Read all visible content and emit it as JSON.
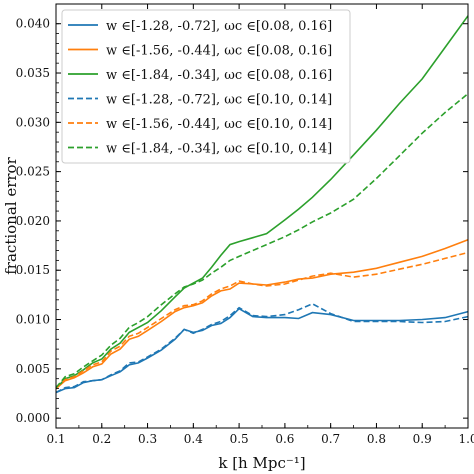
{
  "chart_data": {
    "type": "line",
    "title": "",
    "xlabel": "k [h Mpc⁻¹]",
    "ylabel": "fractional error",
    "xlim": [
      0.1,
      1.0
    ],
    "ylim": [
      -0.001,
      0.042
    ],
    "x_ticks": [
      "0.1",
      "0.2",
      "0.3",
      "0.4",
      "0.5",
      "0.6",
      "0.7",
      "0.8",
      "0.9",
      "1.0"
    ],
    "y_ticks": [
      "0.000",
      "0.005",
      "0.010",
      "0.015",
      "0.020",
      "0.025",
      "0.030",
      "0.035",
      "0.040"
    ],
    "grid": false,
    "legend_position": "top-left",
    "series": [
      {
        "name": "w ∈[-1.28, -0.72], ωc ∈[0.08, 0.16]",
        "color": "#1f77b4",
        "style": "solid",
        "x": [
          0.1,
          0.12,
          0.14,
          0.16,
          0.18,
          0.2,
          0.22,
          0.24,
          0.26,
          0.28,
          0.3,
          0.33,
          0.36,
          0.38,
          0.4,
          0.42,
          0.44,
          0.46,
          0.48,
          0.5,
          0.53,
          0.56,
          0.6,
          0.63,
          0.66,
          0.7,
          0.75,
          0.8,
          0.85,
          0.9,
          0.95,
          1.0
        ],
        "values": [
          0.0026,
          0.003,
          0.0031,
          0.0036,
          0.0038,
          0.0039,
          0.0043,
          0.0047,
          0.0054,
          0.0056,
          0.0061,
          0.0069,
          0.008,
          0.009,
          0.0087,
          0.0089,
          0.0094,
          0.0096,
          0.0102,
          0.0111,
          0.0103,
          0.0102,
          0.0102,
          0.0101,
          0.0107,
          0.0105,
          0.0099,
          0.0099,
          0.0099,
          0.01,
          0.0102,
          0.0108
        ]
      },
      {
        "name": "w ∈[-1.56, -0.44], ωc ∈[0.08, 0.16]",
        "color": "#ff7f0e",
        "style": "solid",
        "x": [
          0.1,
          0.12,
          0.14,
          0.16,
          0.18,
          0.2,
          0.22,
          0.24,
          0.26,
          0.28,
          0.3,
          0.33,
          0.36,
          0.38,
          0.4,
          0.42,
          0.44,
          0.46,
          0.48,
          0.5,
          0.53,
          0.56,
          0.6,
          0.63,
          0.66,
          0.7,
          0.75,
          0.8,
          0.85,
          0.9,
          0.95,
          1.0
        ],
        "values": [
          0.003,
          0.0038,
          0.0041,
          0.0046,
          0.0052,
          0.0055,
          0.0065,
          0.007,
          0.008,
          0.0083,
          0.0089,
          0.0098,
          0.0108,
          0.0112,
          0.0114,
          0.0117,
          0.0124,
          0.0129,
          0.0131,
          0.0137,
          0.0136,
          0.0135,
          0.0138,
          0.0141,
          0.0142,
          0.0146,
          0.0148,
          0.0152,
          0.0158,
          0.0164,
          0.0172,
          0.0181
        ]
      },
      {
        "name": "w ∈[-1.84, -0.34], ωc ∈[0.08, 0.16]",
        "color": "#2ca02c",
        "style": "solid",
        "x": [
          0.1,
          0.12,
          0.14,
          0.16,
          0.18,
          0.2,
          0.22,
          0.24,
          0.26,
          0.28,
          0.3,
          0.33,
          0.36,
          0.38,
          0.4,
          0.42,
          0.44,
          0.46,
          0.48,
          0.5,
          0.53,
          0.56,
          0.6,
          0.63,
          0.66,
          0.7,
          0.75,
          0.8,
          0.85,
          0.9,
          0.95,
          1.0
        ],
        "values": [
          0.003,
          0.004,
          0.0043,
          0.0049,
          0.0056,
          0.006,
          0.007,
          0.0076,
          0.0087,
          0.0092,
          0.0097,
          0.0109,
          0.0123,
          0.0132,
          0.0137,
          0.0142,
          0.0153,
          0.0165,
          0.0176,
          0.0179,
          0.0183,
          0.0187,
          0.0201,
          0.0212,
          0.0224,
          0.0242,
          0.0267,
          0.0292,
          0.0319,
          0.0344,
          0.0376,
          0.0408
        ]
      },
      {
        "name": "w ∈[-1.28, -0.72], ωc ∈[0.10, 0.14]",
        "color": "#1f77b4",
        "style": "dashed",
        "x": [
          0.1,
          0.12,
          0.14,
          0.16,
          0.18,
          0.2,
          0.22,
          0.24,
          0.26,
          0.28,
          0.3,
          0.33,
          0.36,
          0.38,
          0.4,
          0.42,
          0.44,
          0.46,
          0.48,
          0.5,
          0.53,
          0.56,
          0.6,
          0.63,
          0.66,
          0.7,
          0.75,
          0.8,
          0.85,
          0.9,
          0.95,
          1.0
        ],
        "values": [
          0.0026,
          0.0031,
          0.0032,
          0.0037,
          0.0038,
          0.0039,
          0.0044,
          0.0048,
          0.0056,
          0.0057,
          0.0062,
          0.007,
          0.0081,
          0.009,
          0.0086,
          0.009,
          0.0095,
          0.0098,
          0.0104,
          0.0112,
          0.0104,
          0.0103,
          0.0105,
          0.011,
          0.0116,
          0.0106,
          0.0098,
          0.0098,
          0.0098,
          0.0097,
          0.0098,
          0.0103
        ]
      },
      {
        "name": "w ∈[-1.56, -0.44], ωc ∈[0.10, 0.14]",
        "color": "#ff7f0e",
        "style": "dashed",
        "x": [
          0.1,
          0.12,
          0.14,
          0.16,
          0.18,
          0.2,
          0.22,
          0.24,
          0.26,
          0.28,
          0.3,
          0.33,
          0.36,
          0.38,
          0.4,
          0.42,
          0.44,
          0.46,
          0.48,
          0.5,
          0.53,
          0.56,
          0.6,
          0.63,
          0.66,
          0.7,
          0.75,
          0.8,
          0.85,
          0.9,
          0.95,
          1.0
        ],
        "values": [
          0.003,
          0.0039,
          0.0042,
          0.0048,
          0.0054,
          0.0057,
          0.0068,
          0.0073,
          0.0083,
          0.0086,
          0.0092,
          0.0101,
          0.011,
          0.0114,
          0.0115,
          0.0119,
          0.0126,
          0.0131,
          0.0134,
          0.0139,
          0.0136,
          0.0134,
          0.0136,
          0.014,
          0.0144,
          0.0147,
          0.0143,
          0.0146,
          0.0151,
          0.0156,
          0.0162,
          0.0168
        ]
      },
      {
        "name": "w ∈[-1.84, -0.34], ωc ∈[0.10, 0.14]",
        "color": "#2ca02c",
        "style": "dashed",
        "x": [
          0.1,
          0.12,
          0.14,
          0.16,
          0.18,
          0.2,
          0.22,
          0.24,
          0.26,
          0.28,
          0.3,
          0.33,
          0.36,
          0.38,
          0.4,
          0.42,
          0.44,
          0.46,
          0.48,
          0.5,
          0.53,
          0.56,
          0.6,
          0.63,
          0.66,
          0.7,
          0.75,
          0.8,
          0.85,
          0.9,
          0.95,
          1.0
        ],
        "values": [
          0.0031,
          0.0042,
          0.0045,
          0.0052,
          0.0058,
          0.0064,
          0.0074,
          0.0081,
          0.0092,
          0.0097,
          0.0103,
          0.0115,
          0.0126,
          0.0133,
          0.0136,
          0.014,
          0.0147,
          0.0153,
          0.016,
          0.0164,
          0.017,
          0.0176,
          0.0184,
          0.0191,
          0.0199,
          0.0208,
          0.0222,
          0.0243,
          0.0266,
          0.0289,
          0.031,
          0.0329
        ]
      }
    ]
  }
}
